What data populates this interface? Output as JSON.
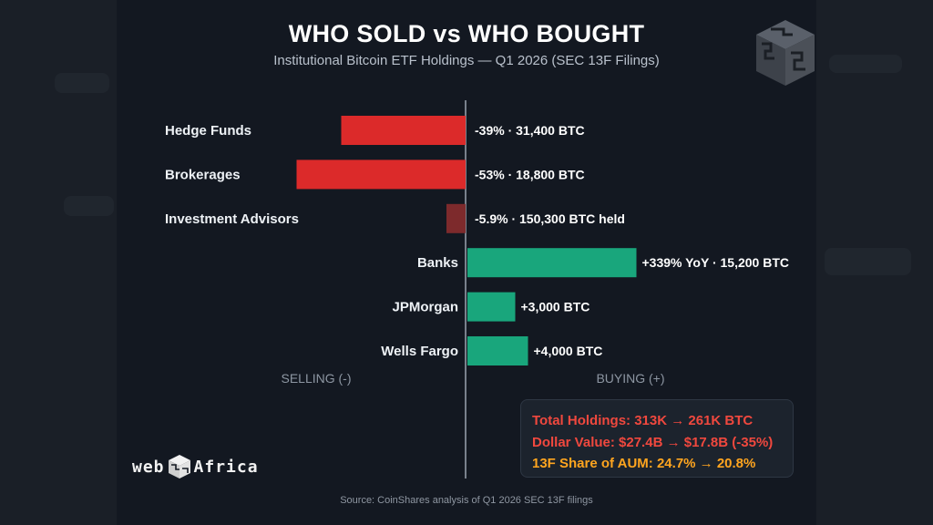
{
  "chart_data": {
    "type": "bar",
    "orientation": "horizontal-diverging",
    "title": "WHO SOLD vs WHO BOUGHT",
    "subtitle": "Institutional Bitcoin ETF Holdings — Q1 2026 (SEC 13F Filings)",
    "categories": [
      "Hedge Funds",
      "Brokerages",
      "Investment Advisors",
      "Banks",
      "JPMorgan",
      "Wells Fargo"
    ],
    "values": [
      -39,
      -53,
      -5.9,
      339,
      3000,
      4000
    ],
    "bar_magnitudes": [
      -0.39,
      -0.53,
      -0.06,
      0.53,
      0.15,
      0.19
    ],
    "data_labels": [
      "-39% · 31,400 BTC",
      "-53% · 18,800 BTC",
      "-5.9% · 150,300 BTC held",
      "+339% YoY · 15,200 BTC",
      "+3,000 BTC",
      "+4,000 BTC"
    ],
    "bar_colors": [
      "#dc2a2a",
      "#dc2a2a",
      "#7d2a2c",
      "#19a67c",
      "#19a67c",
      "#19a67c"
    ],
    "left_label": "SELLING (-)",
    "right_label": "BUYING (+)"
  },
  "summary": {
    "total_holdings": "Total Holdings: 313K → 261K BTC",
    "dollar_value": "Dollar Value: $27.4B → $17.8B (-35%)",
    "aum_share": "13F Share of AUM: 24.7% → 20.8%"
  },
  "source": "Source: CoinShares analysis of Q1 2026 SEC 13F filings",
  "brand": {
    "left": "web",
    "right": "Africa"
  },
  "colors": {
    "negative": "#dc2a2a",
    "positive": "#19a67c",
    "accent_orange": "#ffa51f",
    "background": "#131821"
  }
}
